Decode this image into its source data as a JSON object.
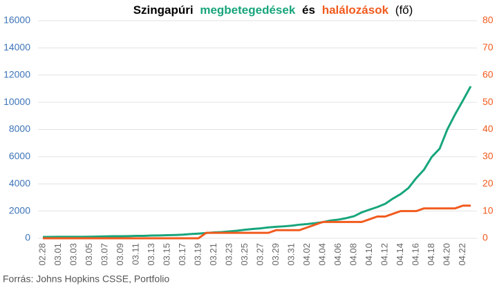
{
  "chart_data": {
    "type": "line",
    "title_start": "Szingapúri",
    "title_join": "és",
    "title_end": "(fő)",
    "source": "Forrás: Johns Hopkins CSSE, Portfolio",
    "categories": [
      "02.28",
      null,
      "03.01",
      null,
      "03.03",
      null,
      "03.05",
      null,
      "03.07",
      null,
      "03.09",
      null,
      "03.11",
      null,
      "03.13",
      null,
      "03.15",
      null,
      "03.17",
      null,
      "03.19",
      null,
      "03.21",
      null,
      "03.23",
      null,
      "03.25",
      null,
      "03.27",
      null,
      "03.29",
      null,
      "03.31",
      null,
      "04.02",
      null,
      "04.04",
      null,
      "04.06",
      null,
      "04.08",
      null,
      "04.10",
      null,
      "04.12",
      null,
      "04.14",
      null,
      "04.16",
      null,
      "04.18",
      null,
      "04.20",
      null,
      "04.22",
      null
    ],
    "series": [
      {
        "name": "megbetegedések",
        "color": "#17a57b",
        "values": [
          98,
          102,
          106,
          108,
          110,
          110,
          117,
          130,
          138,
          150,
          150,
          160,
          178,
          178,
          200,
          212,
          226,
          243,
          266,
          313,
          345,
          385,
          432,
          455,
          509,
          558,
          631,
          683,
          732,
          802,
          844,
          879,
          926,
          1000,
          1049,
          1114,
          1189,
          1309,
          1375,
          1481,
          1623,
          1910,
          2108,
          2299,
          2532,
          2918,
          3252,
          3699,
          4427,
          5050,
          5992,
          6588,
          8014,
          9125,
          10141,
          11178
        ]
      },
      {
        "name": "halálozások",
        "color": "#f15a1d",
        "axis": "y2",
        "values": [
          0,
          0,
          0,
          0,
          0,
          0,
          0,
          0,
          0,
          0,
          0,
          0,
          0,
          0,
          0,
          0,
          0,
          0,
          0,
          0,
          0,
          2,
          2,
          2,
          2,
          2,
          2,
          2,
          2,
          2,
          3,
          3,
          3,
          3,
          4,
          5,
          6,
          6,
          6,
          6,
          6,
          6,
          7,
          8,
          8,
          9,
          10,
          10,
          10,
          11,
          11,
          11,
          11,
          11,
          12,
          12
        ]
      }
    ],
    "ylim": [
      0,
      16000
    ],
    "yticks": [
      0,
      2000,
      4000,
      6000,
      8000,
      10000,
      12000,
      14000,
      16000
    ],
    "y2lim": [
      0,
      80
    ],
    "y2ticks": [
      0,
      10,
      20,
      30,
      40,
      50,
      60,
      70,
      80
    ],
    "ytick_color": "#3d74b8",
    "grid": true
  }
}
